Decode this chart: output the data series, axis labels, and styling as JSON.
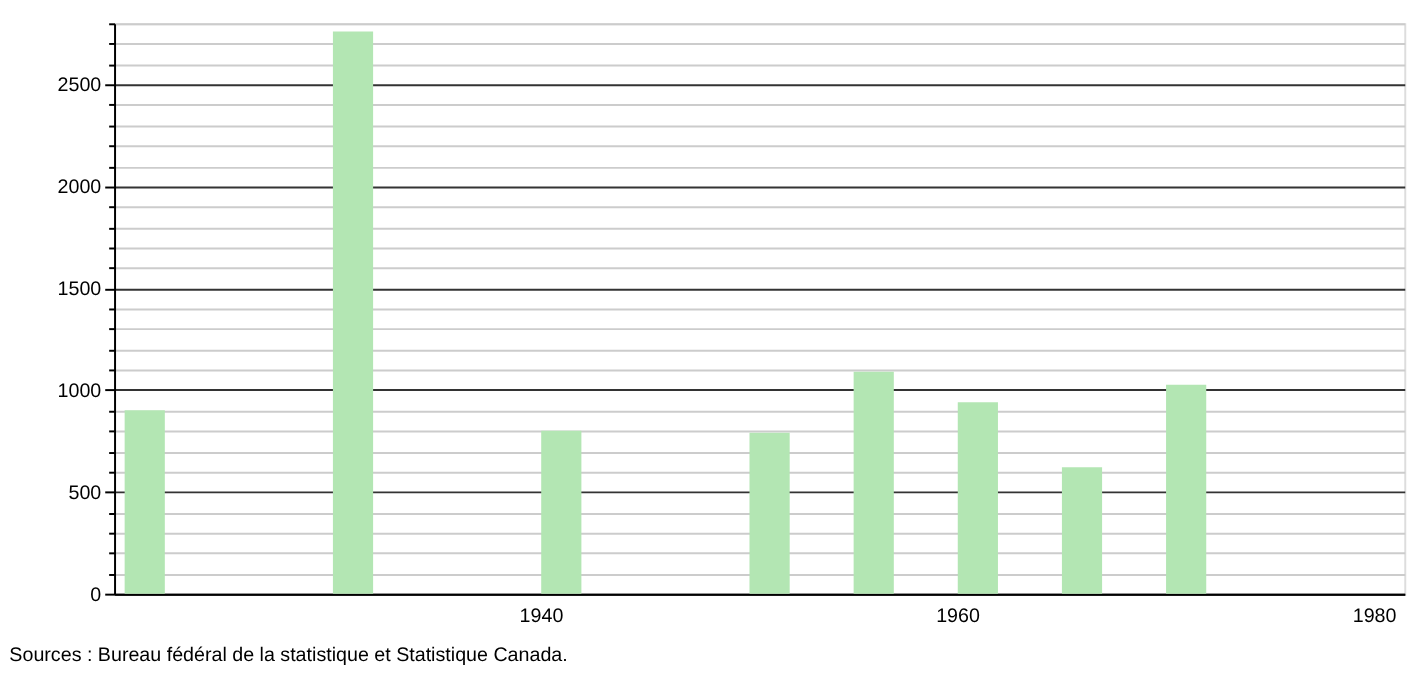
{
  "chart_data": {
    "type": "bar",
    "x": [
      1921,
      1931,
      1941,
      1951,
      1956,
      1961,
      1966,
      1971
    ],
    "values": [
      900,
      2760,
      800,
      790,
      1090,
      940,
      620,
      1025
    ],
    "color": "#b3e6b3",
    "xlim": [
      1920,
      1981
    ],
    "xticks": [
      1940,
      1960,
      1980
    ],
    "ylim": [
      0,
      2800
    ],
    "yticks": [
      0,
      {
        "value": 100,
        "label": null
      },
      {
        "value": 200,
        "label": null
      },
      {
        "value": 300,
        "label": null
      },
      {
        "value": 400,
        "label": null
      },
      500,
      {
        "value": 600,
        "label": null
      },
      {
        "value": 700,
        "label": null
      },
      {
        "value": 800,
        "label": null
      },
      {
        "value": 900,
        "label": null
      },
      1000,
      {
        "value": 1100,
        "label": null
      },
      {
        "value": 1200,
        "label": null
      },
      {
        "value": 1300,
        "label": null
      },
      {
        "value": 1400,
        "label": null
      },
      1500,
      {
        "value": 1600,
        "label": null
      },
      {
        "value": 1700,
        "label": null
      },
      {
        "value": 1800,
        "label": null
      },
      {
        "value": 1900,
        "label": null
      },
      2000,
      {
        "value": 2100,
        "label": null
      },
      {
        "value": 2200,
        "label": null
      },
      {
        "value": 2300,
        "label": null
      },
      {
        "value": 2400,
        "label": null
      },
      2500,
      {
        "value": 2600,
        "label": null
      },
      {
        "value": 2700,
        "label": null
      },
      {
        "value": 2800,
        "label": null
      }
    ],
    "grid": "y",
    "annotations": [
      "Sources : Bureau fédéral de la statistique et Statistique Canada."
    ]
  }
}
